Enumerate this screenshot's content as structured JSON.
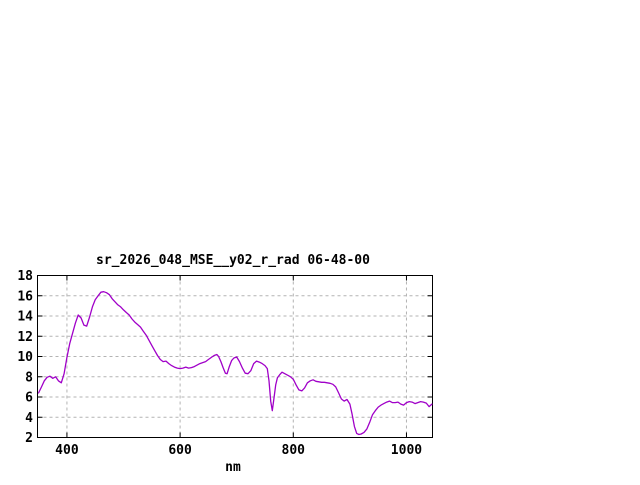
{
  "page": {
    "background": "#ffffff"
  },
  "chart_data": {
    "type": "line",
    "title": "sr_2026_048_MSE__y02_r_rad 06-48-00",
    "xlabel": "nm",
    "ylabel": "",
    "xlim": [
      348,
      1046
    ],
    "ylim": [
      2,
      18
    ],
    "xticks": [
      400,
      600,
      800,
      1000
    ],
    "yticks": [
      2,
      4,
      6,
      8,
      10,
      12,
      14,
      16,
      18
    ],
    "grid": true,
    "legend_position": "none",
    "colors": {
      "line": "#a000c8",
      "grid": "#b3b3b3",
      "axis": "#000000",
      "text": "#000000"
    },
    "series": [
      {
        "name": "sr_2026_048_MSE__y02_r_rad",
        "x": [
          350,
          355,
          360,
          365,
          370,
          375,
          380,
          385,
          390,
          395,
          400,
          405,
          410,
          415,
          420,
          425,
          430,
          435,
          440,
          445,
          450,
          455,
          460,
          465,
          470,
          475,
          480,
          485,
          490,
          495,
          500,
          505,
          510,
          515,
          520,
          525,
          530,
          535,
          540,
          545,
          550,
          555,
          560,
          565,
          570,
          575,
          580,
          585,
          590,
          595,
          600,
          605,
          610,
          615,
          620,
          625,
          630,
          635,
          640,
          645,
          650,
          655,
          660,
          665,
          668,
          672,
          676,
          680,
          683,
          687,
          691,
          695,
          700,
          705,
          710,
          715,
          720,
          725,
          730,
          735,
          740,
          745,
          750,
          754,
          757,
          760,
          763,
          766,
          769,
          772,
          776,
          780,
          785,
          790,
          795,
          800,
          805,
          810,
          815,
          820,
          825,
          830,
          835,
          840,
          845,
          850,
          855,
          860,
          865,
          870,
          875,
          880,
          885,
          890,
          895,
          900,
          904,
          908,
          912,
          916,
          920,
          925,
          930,
          935,
          940,
          945,
          950,
          955,
          960,
          965,
          970,
          975,
          980,
          985,
          990,
          995,
          1000,
          1005,
          1010,
          1015,
          1020,
          1025,
          1030,
          1035,
          1040,
          1045
        ],
        "y": [
          6.4,
          7.0,
          7.6,
          7.95,
          8.05,
          7.85,
          8.0,
          7.6,
          7.4,
          8.3,
          9.9,
          11.3,
          12.3,
          13.3,
          14.1,
          13.8,
          13.1,
          13.0,
          13.9,
          14.9,
          15.6,
          16.0,
          16.35,
          16.4,
          16.3,
          16.1,
          15.7,
          15.4,
          15.1,
          14.9,
          14.6,
          14.35,
          14.1,
          13.7,
          13.4,
          13.15,
          12.9,
          12.5,
          12.1,
          11.6,
          11.1,
          10.6,
          10.1,
          9.7,
          9.5,
          9.55,
          9.3,
          9.1,
          8.95,
          8.85,
          8.8,
          8.85,
          8.95,
          8.85,
          8.9,
          9.0,
          9.15,
          9.3,
          9.4,
          9.5,
          9.7,
          9.9,
          10.1,
          10.2,
          10.0,
          9.5,
          8.9,
          8.35,
          8.3,
          9.0,
          9.6,
          9.85,
          9.95,
          9.5,
          8.85,
          8.35,
          8.3,
          8.6,
          9.3,
          9.55,
          9.45,
          9.3,
          9.1,
          8.8,
          7.6,
          5.6,
          4.65,
          5.9,
          7.2,
          7.9,
          8.2,
          8.45,
          8.3,
          8.15,
          8.0,
          7.75,
          7.2,
          6.7,
          6.6,
          6.9,
          7.4,
          7.6,
          7.7,
          7.55,
          7.5,
          7.45,
          7.45,
          7.4,
          7.35,
          7.25,
          7.0,
          6.4,
          5.8,
          5.6,
          5.75,
          5.3,
          4.3,
          3.1,
          2.4,
          2.3,
          2.35,
          2.5,
          2.85,
          3.5,
          4.25,
          4.65,
          5.0,
          5.2,
          5.35,
          5.5,
          5.6,
          5.45,
          5.45,
          5.5,
          5.3,
          5.2,
          5.45,
          5.55,
          5.5,
          5.35,
          5.45,
          5.55,
          5.5,
          5.4,
          5.05,
          5.3
        ]
      }
    ]
  }
}
